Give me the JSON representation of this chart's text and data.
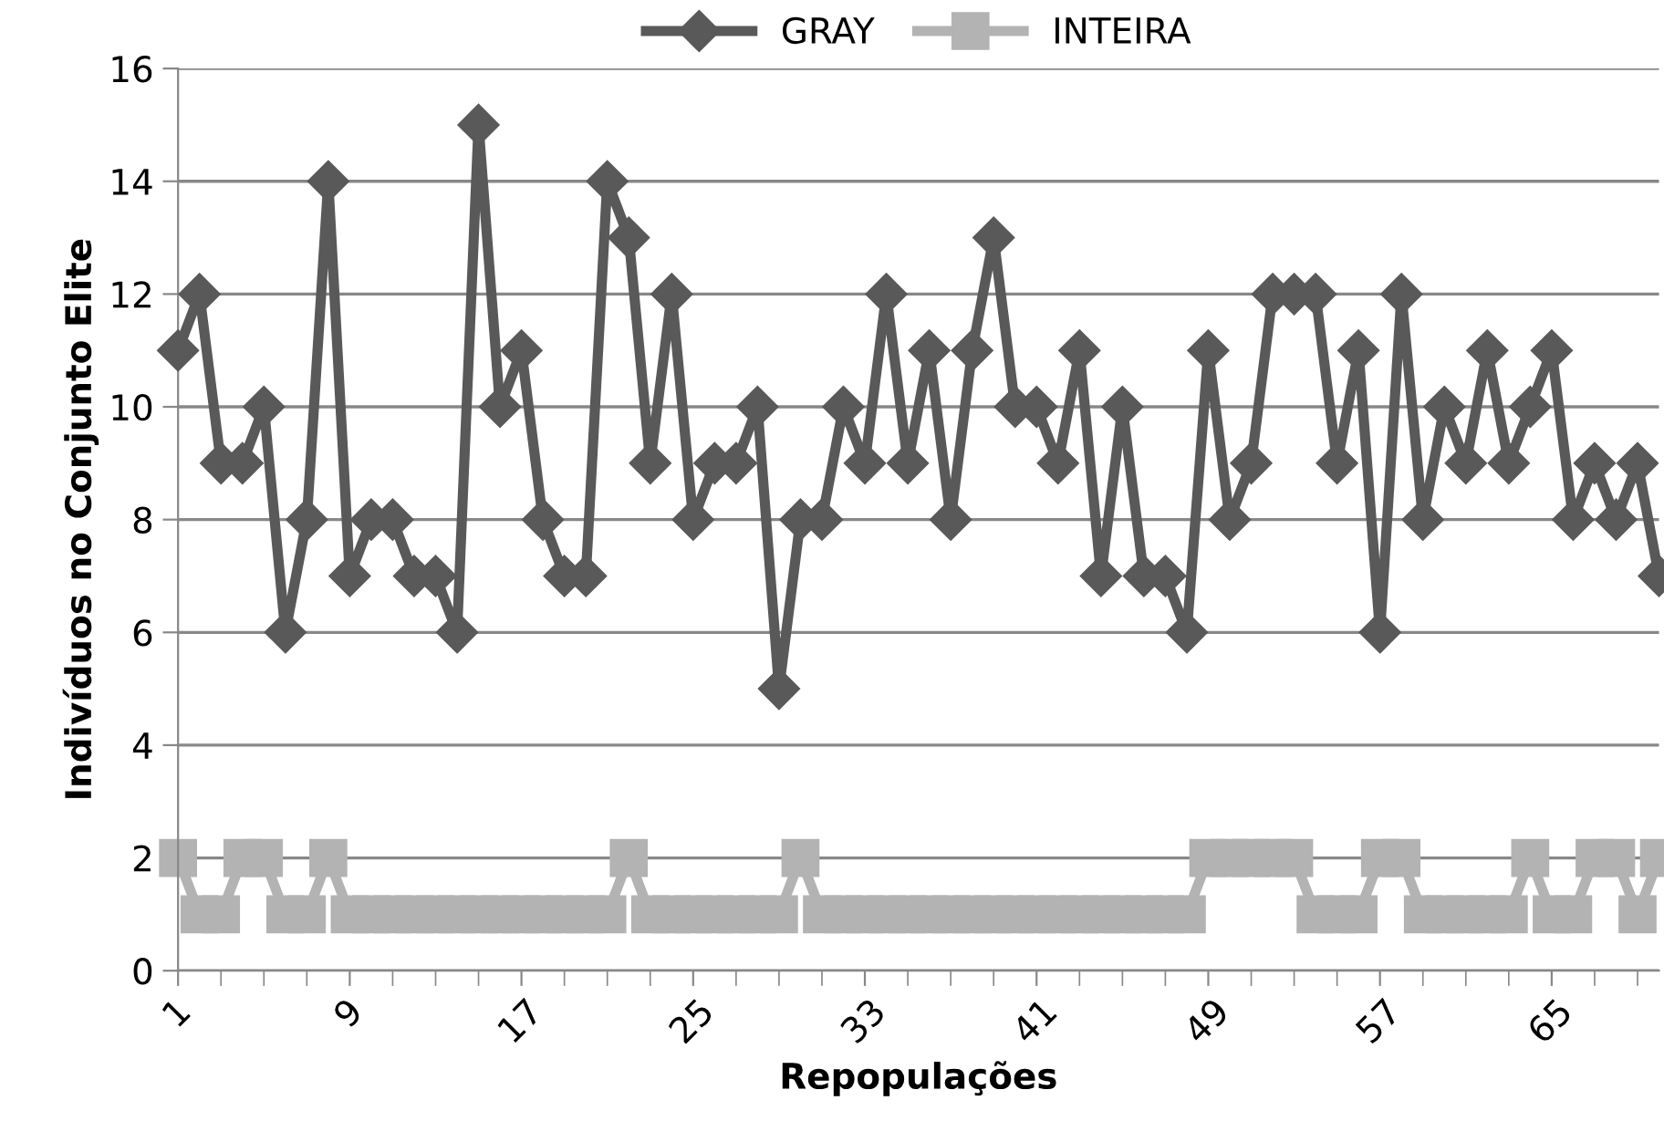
{
  "chart_data": {
    "type": "line",
    "xlabel": "Repopulações",
    "ylabel": "Indivíduos no Conjunto Elite",
    "categories": [
      "1",
      null,
      null,
      null,
      null,
      null,
      null,
      null,
      "9",
      null,
      null,
      null,
      null,
      null,
      null,
      null,
      "17",
      null,
      null,
      null,
      null,
      null,
      null,
      null,
      "25",
      null,
      null,
      null,
      null,
      null,
      null,
      null,
      "33",
      null,
      null,
      null,
      null,
      null,
      null,
      null,
      "41",
      null,
      null,
      null,
      null,
      null,
      null,
      null,
      "49",
      null,
      null,
      null,
      null,
      null,
      null,
      null,
      "57",
      null,
      null,
      null,
      null,
      null,
      null,
      null,
      "65",
      null,
      null,
      null,
      null,
      null
    ],
    "series": [
      {
        "name": "GRAY",
        "color": "#595959",
        "marker": "diamond",
        "values": [
          11,
          12,
          9,
          9,
          10,
          6,
          8,
          14,
          7,
          8,
          8,
          7,
          7,
          6,
          15,
          10,
          11,
          8,
          7,
          7,
          14,
          13,
          9,
          12,
          8,
          9,
          9,
          10,
          5,
          8,
          8,
          10,
          9,
          12,
          9,
          11,
          8,
          11,
          13,
          10,
          10,
          9,
          11,
          7,
          10,
          7,
          7,
          6,
          11,
          8,
          9,
          12,
          12,
          12,
          9,
          11,
          6,
          12,
          8,
          10,
          9,
          11,
          9,
          10,
          11,
          8,
          9,
          8,
          9,
          7
        ]
      },
      {
        "name": "INTEIRA",
        "color": "#b3b3b3",
        "marker": "square",
        "values": [
          2,
          1,
          1,
          2,
          2,
          1,
          1,
          2,
          1,
          1,
          1,
          1,
          1,
          1,
          1,
          1,
          1,
          1,
          1,
          1,
          1,
          2,
          1,
          1,
          1,
          1,
          1,
          1,
          1,
          2,
          1,
          1,
          1,
          1,
          1,
          1,
          1,
          1,
          1,
          1,
          1,
          1,
          1,
          1,
          1,
          1,
          1,
          1,
          2,
          2,
          2,
          2,
          2,
          1,
          1,
          1,
          2,
          2,
          1,
          1,
          1,
          1,
          1,
          2,
          1,
          1,
          2,
          2,
          1,
          2
        ]
      }
    ],
    "ylim": [
      0,
      16
    ],
    "yticks": [
      0,
      2,
      4,
      6,
      8,
      10,
      12,
      14,
      16
    ],
    "grid": "y",
    "legend": "top"
  }
}
